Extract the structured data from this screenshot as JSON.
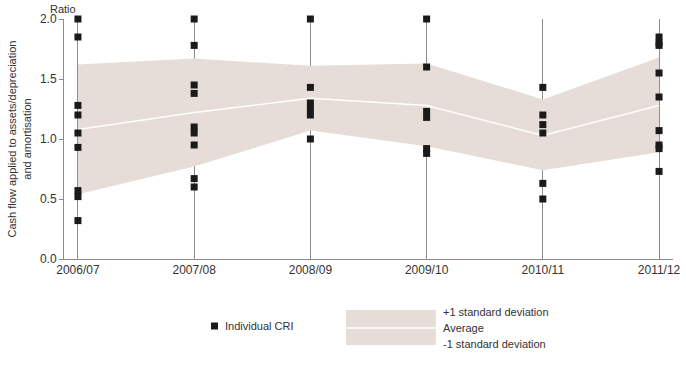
{
  "chart_data": {
    "type": "scatter",
    "y_label": [
      "Cash flow applied to assets/depreciation",
      "and amortisation"
    ],
    "y_unit_label": "Ratio",
    "categories": [
      "2006/07",
      "2007/08",
      "2008/09",
      "2009/10",
      "2010/11",
      "2011/12"
    ],
    "ylim": [
      0,
      2
    ],
    "yticks": [
      {
        "value": 0,
        "label": "0.0"
      },
      {
        "value": 0.5,
        "label": "0.5"
      },
      {
        "value": 1,
        "label": "1.0"
      },
      {
        "value": 1.5,
        "label": "1.5"
      },
      {
        "value": 2,
        "label": "2.0"
      }
    ],
    "grid": true,
    "legend": "bottom",
    "series": [
      {
        "name": "Individual CRI",
        "type": "scatter",
        "marker": "square",
        "color": "#1a1a1a",
        "values": [
          [
            2.0,
            1.85,
            1.28,
            1.2,
            1.05,
            0.93,
            0.57,
            0.52,
            0.32
          ],
          [
            2.0,
            1.78,
            1.45,
            1.38,
            1.1,
            1.05,
            0.95,
            0.67,
            0.6
          ],
          [
            2.0,
            1.43,
            1.3,
            1.25,
            1.2,
            1.0
          ],
          [
            2.0,
            1.6,
            1.23,
            1.18,
            0.92,
            0.88
          ],
          [
            1.43,
            1.2,
            1.12,
            1.05,
            0.63,
            0.5
          ],
          [
            1.85,
            1.8,
            1.78,
            1.55,
            1.35,
            1.07,
            0.95,
            0.92,
            0.73
          ]
        ]
      },
      {
        "name": "+1 standard deviation",
        "type": "area",
        "color": "#e6ddd8",
        "values": [
          1.62,
          1.67,
          1.61,
          1.63,
          1.33,
          1.68
        ]
      },
      {
        "name": "Average",
        "type": "line",
        "color": "#ffffff",
        "values": [
          1.08,
          1.22,
          1.34,
          1.28,
          1.03,
          1.28
        ]
      },
      {
        "name": "-1 standard deviation",
        "type": "area",
        "color": "#e6ddd8",
        "values": [
          0.54,
          0.77,
          1.07,
          0.94,
          0.74,
          0.89
        ]
      }
    ]
  }
}
